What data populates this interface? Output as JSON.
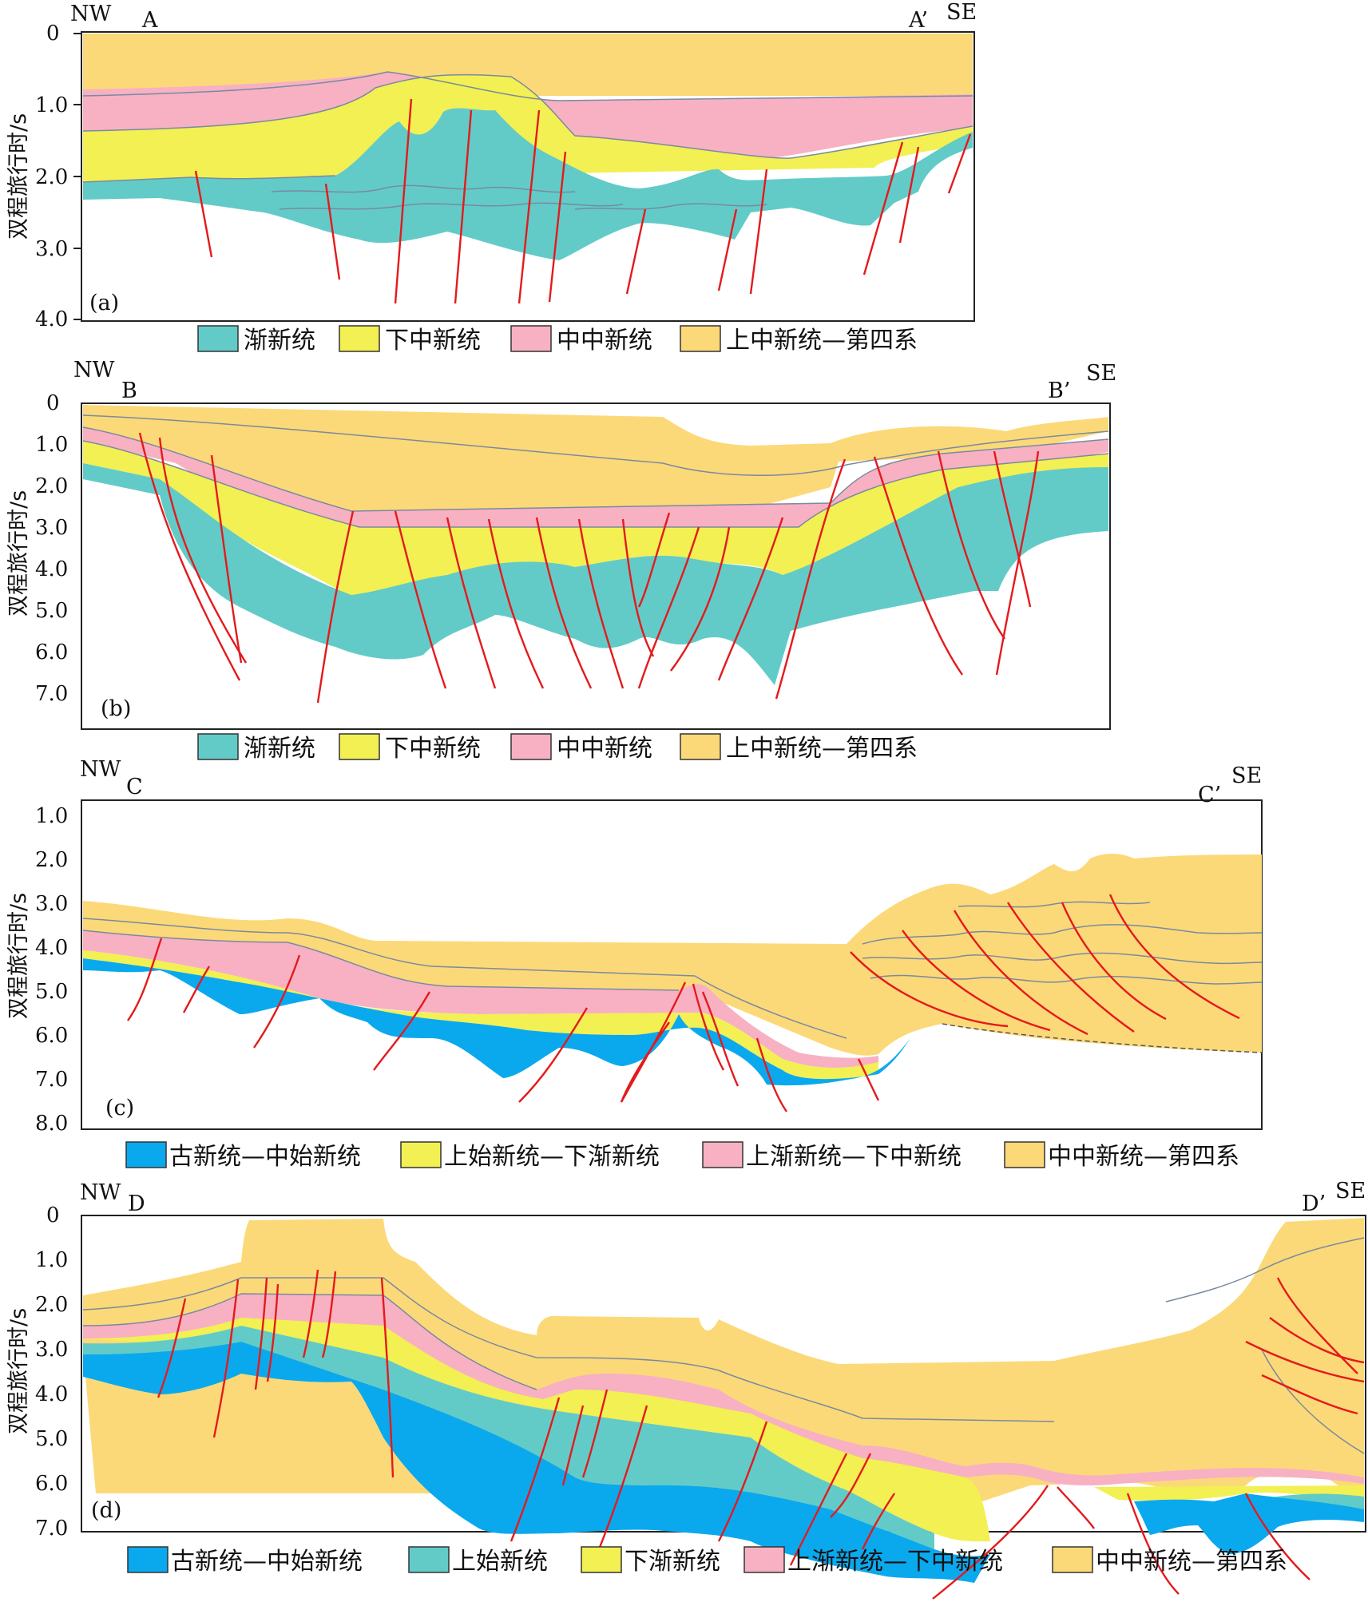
{
  "colors": {
    "oligocene": "#62CBC8",
    "lower_miocene": "#F2F052",
    "middle_miocene": "#F7B1C2",
    "upper_miocene_quaternary": "#FCD978",
    "paleocene_eocene": "#0AA9EE",
    "fault": "#E41A1C",
    "horizon": "#7A8AA0"
  },
  "y_axis_label": "双程旅行时/s",
  "panels": [
    {
      "id": "a",
      "tag": "(a)",
      "nw": "NW",
      "se": "SE",
      "start": "A",
      "end": "A’",
      "ticks": [
        "0",
        "1.0",
        "2.0",
        "3.0",
        "4.0"
      ],
      "legend": [
        {
          "color": "#62CBC8",
          "label": "渐新统"
        },
        {
          "color": "#F2F052",
          "label": "下中新统"
        },
        {
          "color": "#F7B1C2",
          "label": "中中新统"
        },
        {
          "color": "#FCD978",
          "label": "上中新统—第四系"
        }
      ]
    },
    {
      "id": "b",
      "tag": "(b)",
      "nw": "NW",
      "se": "SE",
      "start": "B",
      "end": "B’",
      "ticks": [
        "0",
        "1.0",
        "2.0",
        "3.0",
        "4.0",
        "5.0",
        "6.0",
        "7.0"
      ],
      "legend": [
        {
          "color": "#62CBC8",
          "label": "渐新统"
        },
        {
          "color": "#F2F052",
          "label": "下中新统"
        },
        {
          "color": "#F7B1C2",
          "label": "中中新统"
        },
        {
          "color": "#FCD978",
          "label": "上中新统—第四系"
        }
      ]
    },
    {
      "id": "c",
      "tag": "(c)",
      "nw": "NW",
      "se": "SE",
      "start": "C",
      "end": "C’",
      "ticks": [
        "1.0",
        "2.0",
        "3.0",
        "4.0",
        "5.0",
        "6.0",
        "7.0",
        "8.0"
      ],
      "legend": [
        {
          "color": "#0AA9EE",
          "label": "古新统—中始新统"
        },
        {
          "color": "#F2F052",
          "label": "上始新统—下渐新统"
        },
        {
          "color": "#F7B1C2",
          "label": "上渐新统—下中新统"
        },
        {
          "color": "#FCD978",
          "label": "中中新统—第四系"
        }
      ]
    },
    {
      "id": "d",
      "tag": "(d)",
      "nw": "NW",
      "se": "SE",
      "start": "D",
      "end": "D’",
      "ticks": [
        "0",
        "1.0",
        "2.0",
        "3.0",
        "4.0",
        "5.0",
        "6.0",
        "7.0"
      ],
      "legend": [
        {
          "color": "#0AA9EE",
          "label": "古新统—中始新统"
        },
        {
          "color": "#62CBC8",
          "label": "上始新统"
        },
        {
          "color": "#F2F052",
          "label": "下渐新统"
        },
        {
          "color": "#F7B1C2",
          "label": "上渐新统—下中新统"
        },
        {
          "color": "#FCD978",
          "label": "中中新统—第四系"
        }
      ]
    }
  ]
}
